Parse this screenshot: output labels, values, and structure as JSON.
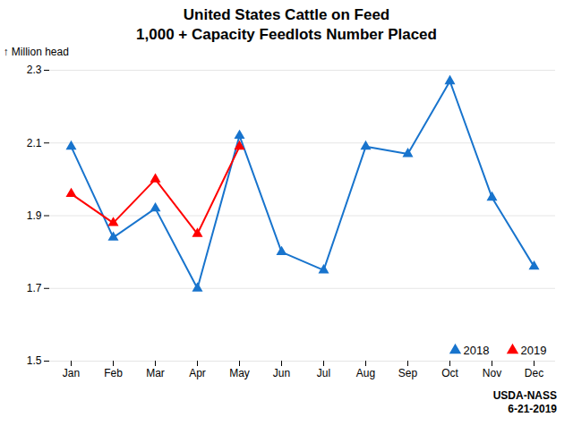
{
  "chart_data": {
    "type": "line",
    "title": "United States Cattle on Feed",
    "subtitle": "1,000 + Capacity Feedlots Number Placed",
    "y_label": "Million head",
    "categories": [
      "Jan",
      "Feb",
      "Mar",
      "Apr",
      "May",
      "Jun",
      "Jul",
      "Aug",
      "Sep",
      "Oct",
      "Nov",
      "Dec"
    ],
    "series": [
      {
        "name": "2018",
        "color": "#1874CD",
        "values": [
          2.09,
          1.84,
          1.92,
          1.7,
          2.12,
          1.8,
          1.75,
          2.09,
          2.07,
          2.27,
          1.95,
          1.76
        ]
      },
      {
        "name": "2019",
        "color": "#FF0000",
        "values": [
          1.96,
          1.88,
          2.0,
          1.85,
          2.09,
          null,
          null,
          null,
          null,
          null,
          null,
          null
        ]
      }
    ],
    "ylim": [
      1.5,
      2.3
    ],
    "yticks": [
      1.5,
      1.7,
      1.9,
      2.1,
      2.3
    ],
    "grid": true,
    "legend": "lower right",
    "marker": "triangle",
    "annotations": [
      "USDA-NASS",
      "6-21-2019"
    ]
  }
}
